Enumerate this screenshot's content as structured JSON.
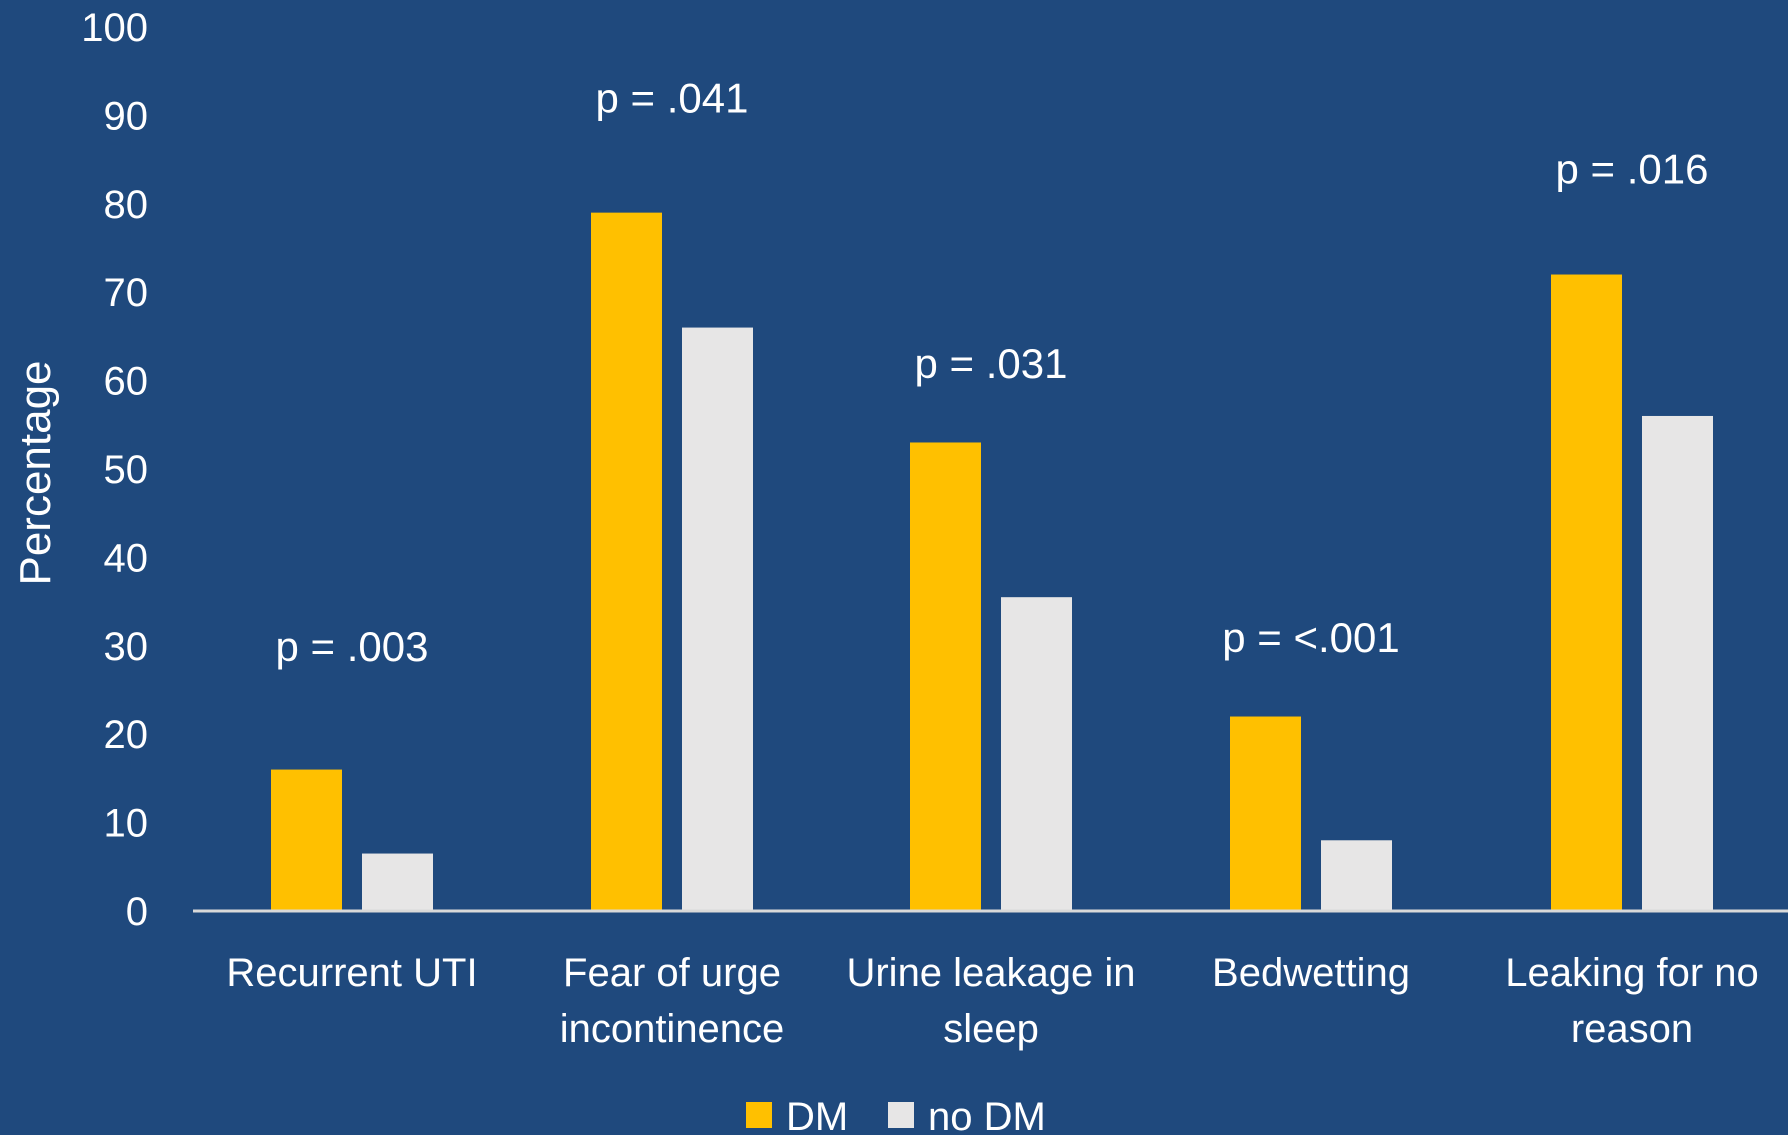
{
  "chart_data": {
    "type": "bar",
    "title": "",
    "ylabel": "Percentage",
    "xlabel": "",
    "ylim": [
      0,
      100
    ],
    "yticks": [
      0,
      10,
      20,
      30,
      40,
      50,
      60,
      70,
      80,
      90,
      100
    ],
    "categories": [
      [
        "Recurrent UTI"
      ],
      [
        "Fear of urge",
        "incontinence"
      ],
      [
        "Urine leakage in",
        "sleep"
      ],
      [
        "Bedwetting"
      ],
      [
        "Leaking for no",
        "reason"
      ]
    ],
    "series": [
      {
        "name": "DM",
        "values": [
          16,
          79,
          53,
          22,
          72
        ]
      },
      {
        "name": "no DM",
        "values": [
          6.5,
          66,
          35.5,
          8,
          56
        ]
      }
    ],
    "annotations": [
      "p = .003",
      "p = .041",
      "p = .031",
      "p = <.001",
      "p = .016"
    ],
    "annotation_values": [
      30,
      92,
      62,
      31,
      84
    ],
    "legend_position": "bottom",
    "grid": false
  },
  "colors": {
    "background": "#1F497D",
    "DM": "#FFC000",
    "no DM": "#E7E6E6",
    "text": "#FFFFFF",
    "axis": "#D9D9D9"
  }
}
